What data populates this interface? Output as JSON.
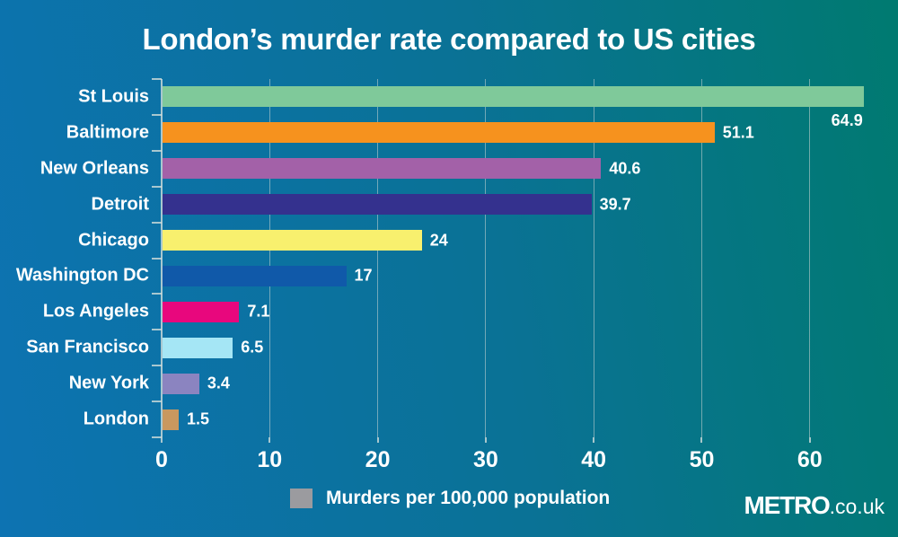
{
  "title": "London’s murder rate compared to US cities",
  "chart_data": {
    "type": "bar",
    "orientation": "horizontal",
    "categories": [
      "St Louis",
      "Baltimore",
      "New Orleans",
      "Detroit",
      "Chicago",
      "Washington DC",
      "Los Angeles",
      "San Francisco",
      "New York",
      "London"
    ],
    "values": [
      64.9,
      51.1,
      40.6,
      39.7,
      24,
      17,
      7.1,
      6.5,
      3.4,
      1.5
    ],
    "value_labels": [
      "64.9",
      "51.1",
      "40.6",
      "39.7",
      "24",
      "17",
      "7.1",
      "6.5",
      "3.4",
      "1.5"
    ],
    "bar_colors": [
      "#7fc99a",
      "#f6921e",
      "#a361a8",
      "#34318e",
      "#f8f06e",
      "#1059a9",
      "#e8077d",
      "#a5e6f5",
      "#8b84c0",
      "#c9985f"
    ],
    "x_ticks": [
      0,
      10,
      20,
      30,
      40,
      50,
      60
    ],
    "xlim": [
      0,
      68
    ],
    "grid": true,
    "legend_position": "bottom",
    "legend": {
      "label": "Murders per 100,000 population",
      "swatch_color": "#9b9b9f"
    }
  },
  "branding": {
    "logo_bold": "METRO",
    "logo_suffix": ".co.uk"
  },
  "colors": {
    "background_left": "#0d73b2",
    "background_right": "#007a70",
    "text": "#ffffff",
    "gridline": "#cad6d4",
    "legend_swatch": "#9b9b9f"
  }
}
